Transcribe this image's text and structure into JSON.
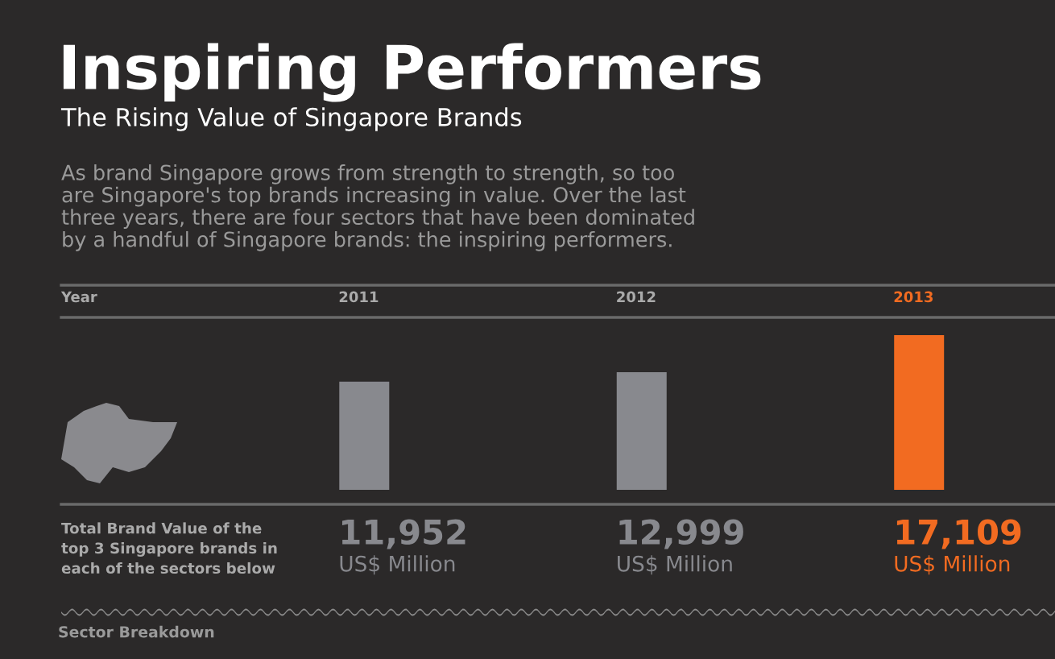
{
  "chart_data": {
    "type": "bar",
    "title": "Inspiring Performers",
    "subtitle": "The Rising Value of Singapore Brands",
    "categories": [
      "2011",
      "2012",
      "2013"
    ],
    "values": [
      11952,
      12999,
      17109
    ],
    "colors": [
      "#88898e",
      "#88898e",
      "#f26b21"
    ],
    "value_labels": [
      "11,952",
      "12,999",
      "17,109"
    ],
    "annotations": [
      "As brand Singapore grows from strength to strength, so too\nare Singapore's top brands increasing in value. Over the last\nthree years, there are four sectors that have been dominated\nby a handful of Singapore brands: the inspiring performers.",
      "Year",
      "Total Brand Value of the\ntop 3 Singapore brands in\neach of the sectors below",
      "US$ Million",
      "US$ Million",
      "US$ Million",
      "Sector Breakdown"
    ]
  }
}
